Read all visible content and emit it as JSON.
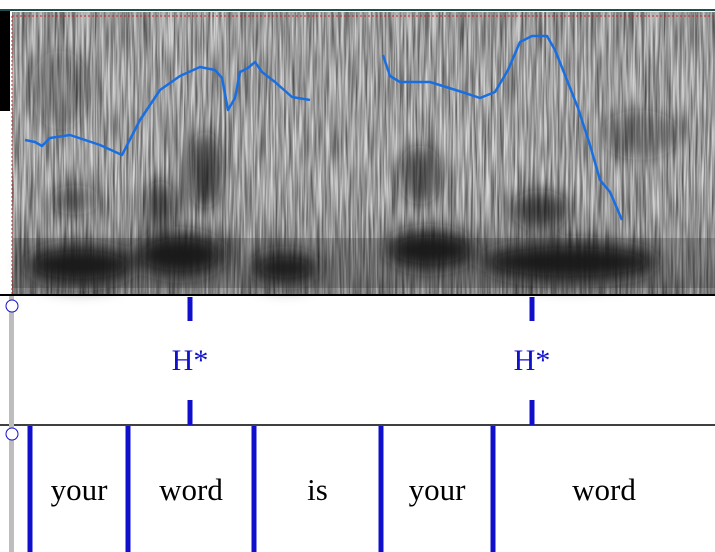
{
  "tone_tier": {
    "points": [
      {
        "label": "H*"
      },
      {
        "label": "H*"
      }
    ]
  },
  "word_tier": {
    "intervals": [
      {
        "label": "your"
      },
      {
        "label": "word"
      },
      {
        "label": "is"
      },
      {
        "label": "your"
      },
      {
        "label": "word"
      }
    ]
  }
}
